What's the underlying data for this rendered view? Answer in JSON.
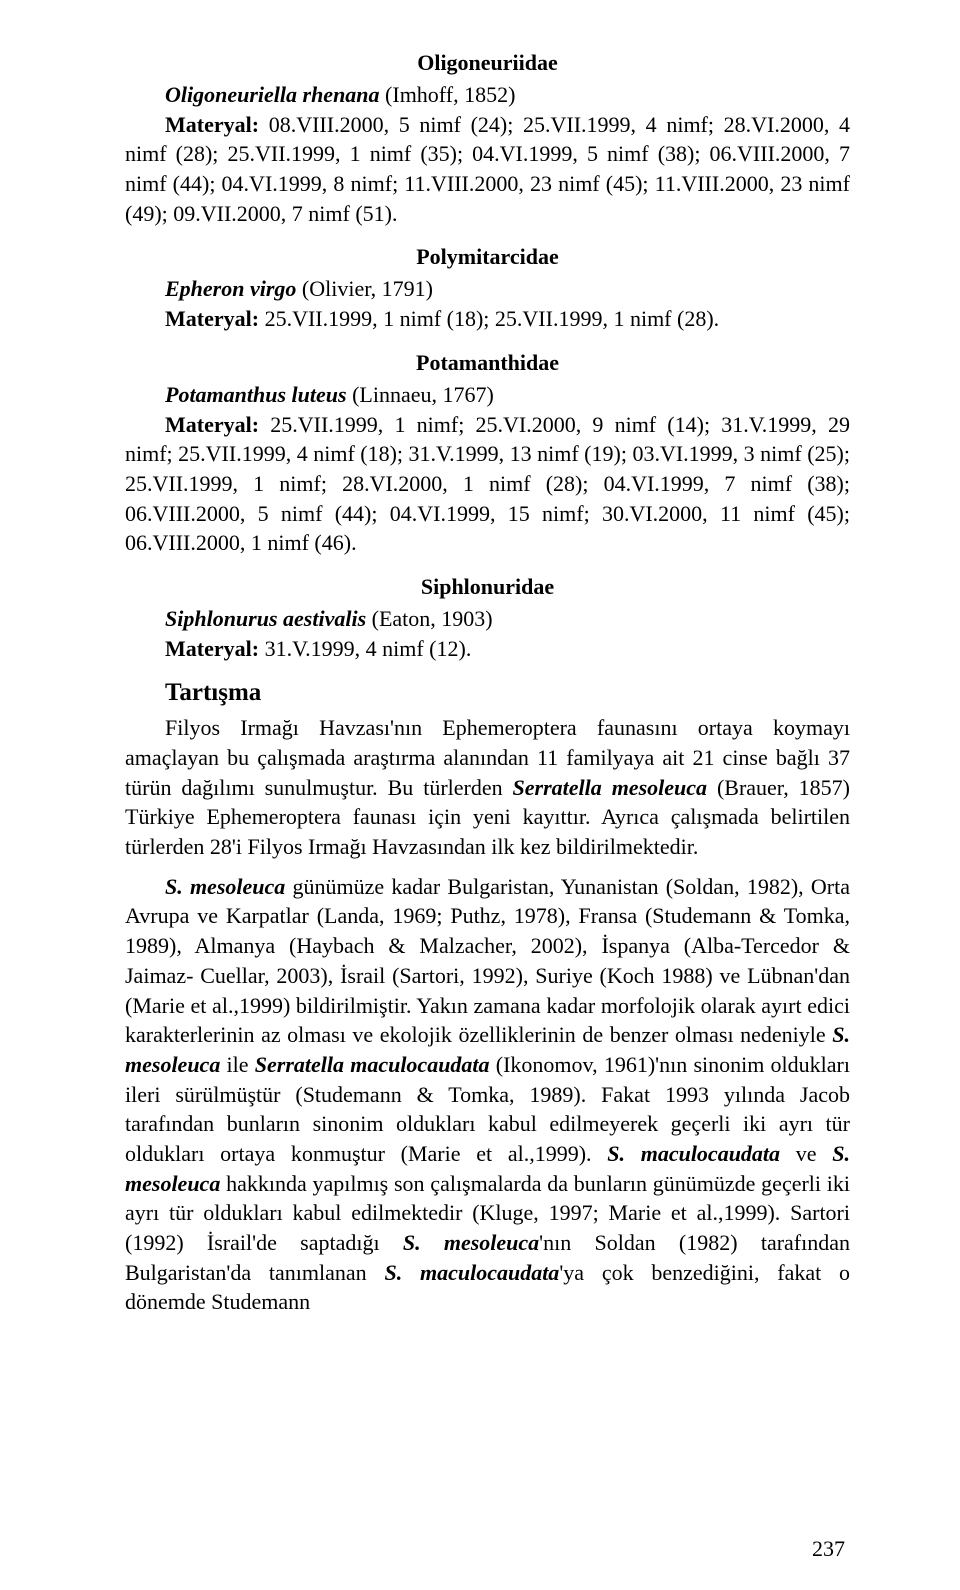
{
  "families": {
    "oligoneuriidae": {
      "heading": "Oligoneuriidae",
      "species": "Oligoneuriella rhenana",
      "authority": "(Imhoff, 1852)",
      "material_label": "Materyal:",
      "material": "08.VIII.2000, 5 nimf (24); 25.VII.1999, 4 nimf; 28.VI.2000, 4 nimf (28); 25.VII.1999, 1 nimf (35); 04.VI.1999, 5 nimf (38); 06.VIII.2000, 7 nimf (44); 04.VI.1999, 8 nimf; 11.VIII.2000, 23 nimf (45); 11.VIII.2000, 23 nimf (49); 09.VII.2000, 7 nimf (51)."
    },
    "polymitarcidae": {
      "heading": "Polymitarcidae",
      "species": "Epheron virgo",
      "authority": "(Olivier, 1791)",
      "material_label": "Materyal:",
      "material": "25.VII.1999, 1 nimf (18); 25.VII.1999, 1 nimf (28)."
    },
    "potamanthidae": {
      "heading": "Potamanthidae",
      "species": "Potamanthus luteus",
      "authority": "(Linnaeu, 1767)",
      "material_label": "Materyal:",
      "material": "25.VII.1999, 1 nimf; 25.VI.2000, 9 nimf (14); 31.V.1999, 29 nimf; 25.VII.1999, 4 nimf (18); 31.V.1999, 13 nimf (19); 03.VI.1999, 3 nimf (25); 25.VII.1999, 1 nimf; 28.VI.2000, 1 nimf (28); 04.VI.1999, 7 nimf (38); 06.VIII.2000, 5 nimf (44); 04.VI.1999, 15 nimf; 30.VI.2000, 11 nimf (45); 06.VIII.2000, 1 nimf (46)."
    },
    "siphlonuridae": {
      "heading": "Siphlonuridae",
      "species": "Siphlonurus aestivalis",
      "authority": "(Eaton, 1903)",
      "material_label": "Materyal:",
      "material": "31.V.1999, 4 nimf (12)."
    }
  },
  "discussion": {
    "heading": "Tartışma",
    "p1_a": "Filyos Irmağı Havzası'nın Ephemeroptera faunasını ortaya koymayı amaçlayan bu çalışmada araştırma alanından 11 familyaya ait 21 cinse bağlı 37 türün dağılımı sunulmuştur. Bu türlerden ",
    "p1_sp1": "Serratella mesoleuca",
    "p1_b": " (Brauer, 1857) Türkiye Ephemeroptera faunası için yeni kayıttır. Ayrıca çalışmada belirtilen türlerden 28'i Filyos Irmağı Havzasından ilk kez bildirilmektedir.",
    "p2_sp1": "S. mesoleuca",
    "p2_a": " günümüze kadar Bulgaristan, Yunanistan (Soldan, 1982), Orta Avrupa ve Karpatlar (Landa, 1969; Puthz, 1978), Fransa (Studemann & Tomka, 1989), Almanya (Haybach & Malzacher, 2002), İspanya (Alba-Tercedor & Jaimaz- Cuellar, 2003), İsrail (Sartori, 1992), Suriye (Koch 1988) ve Lübnan'dan (Marie et al.,1999) bildirilmiştir. Yakın zamana kadar morfolojik olarak ayırt edici karakterlerinin az olması ve ekolojik özelliklerinin de benzer olması nedeniyle ",
    "p2_sp2": "S. mesoleuca",
    "p2_b": " ile ",
    "p2_sp3": "Serratella maculocaudata",
    "p2_c": " (Ikonomov, 1961)'nın sinonim oldukları ileri sürülmüştür (Studemann & Tomka, 1989). Fakat 1993 yılında Jacob tarafından bunların sinonim oldukları kabul edilmeyerek geçerli iki ayrı tür oldukları ortaya konmuştur (Marie et al.,1999). ",
    "p2_sp4": "S. maculocaudata",
    "p2_d": " ve ",
    "p2_sp5": "S. mesoleuca",
    "p2_e": " hakkında yapılmış son çalışmalarda da bunların günümüzde geçerli iki ayrı tür oldukları kabul edilmektedir (Kluge, 1997; Marie et al.,1999). Sartori (1992) İsrail'de saptadığı ",
    "p2_sp6": "S. mesoleuca",
    "p2_f": "'nın Soldan (1982) tarafından Bulgaristan'da tanımlanan ",
    "p2_sp7": "S. maculocaudata",
    "p2_g": "'ya çok benzediğini, fakat o dönemde Studemann"
  },
  "page_number": "237"
}
